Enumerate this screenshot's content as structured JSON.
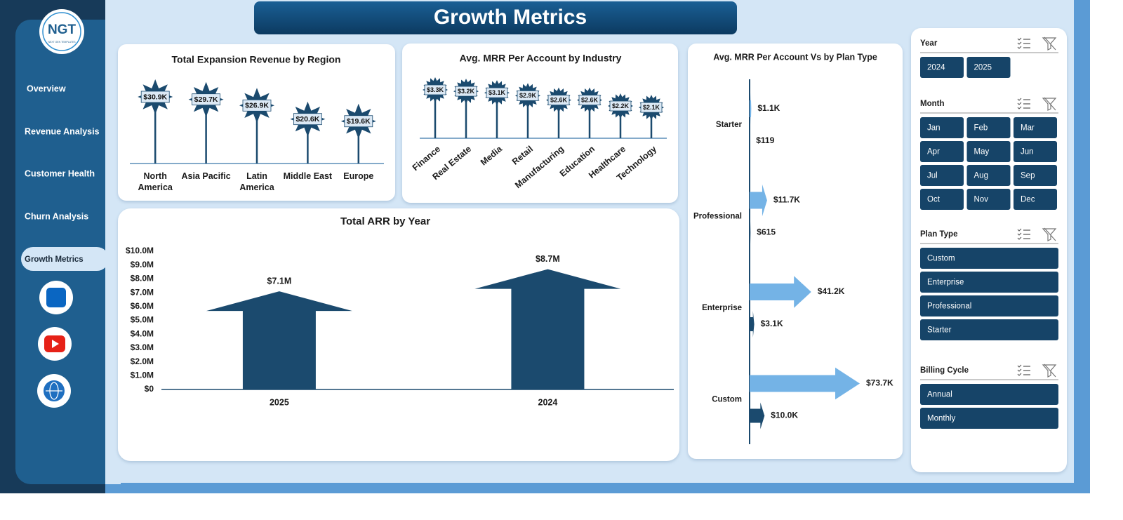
{
  "header": {
    "title": "Growth Metrics"
  },
  "logo": {
    "text": "NGT",
    "subtitle": "NEXT GEN TEMPLATES"
  },
  "nav": [
    "Overview",
    "Revenue Analysis",
    "Customer Health",
    "Churn Analysis",
    "Growth Metrics"
  ],
  "chart_data": [
    {
      "type": "lollipop",
      "title": "Total Expansion Revenue by Region",
      "categories": [
        "North America",
        "Asia Pacific",
        "Latin America",
        "Middle East",
        "Europe"
      ],
      "values": [
        30900,
        29700,
        26900,
        20600,
        19600
      ],
      "value_labels": [
        "$30.9K",
        "$29.7K",
        "$26.9K",
        "$20.6K",
        "$19.6K"
      ],
      "color": "#1b4a6e"
    },
    {
      "type": "lollipop",
      "title": "Avg. MRR Per Account by Industry",
      "categories": [
        "Finance",
        "Real Estate",
        "Media",
        "Retail",
        "Manufacturing",
        "Education",
        "Healthcare",
        "Technology"
      ],
      "values": [
        3300,
        3200,
        3100,
        2900,
        2600,
        2600,
        2200,
        2100
      ],
      "value_labels": [
        "$3.3K",
        "$3.2K",
        "$3.1K",
        "$2.9K",
        "$2.6K",
        "$2.6K",
        "$2.2K",
        "$2.1K"
      ],
      "color": "#1b4a6e"
    },
    {
      "type": "column",
      "title": "Total ARR by Year",
      "categories": [
        "2025",
        "2024"
      ],
      "values": [
        7100000,
        8700000
      ],
      "value_labels": [
        "$7.1M",
        "$8.7M"
      ],
      "color": "#1b4a6e",
      "ylim": [
        0,
        10000000
      ],
      "yticks": [
        {
          "value": 0,
          "label": "$0"
        },
        {
          "value": 1000000,
          "label": "$1.0M"
        },
        {
          "value": 2000000,
          "label": "$2.0M"
        },
        {
          "value": 3000000,
          "label": "$3.0M"
        },
        {
          "value": 4000000,
          "label": "$4.0M"
        },
        {
          "value": 5000000,
          "label": "$5.0M"
        },
        {
          "value": 6000000,
          "label": "$6.0M"
        },
        {
          "value": 7000000,
          "label": "$7.0M"
        },
        {
          "value": 8000000,
          "label": "$8.0M"
        },
        {
          "value": 9000000,
          "label": "$9.0M"
        },
        {
          "value": 10000000,
          "label": "$10.0M"
        }
      ],
      "grid": false
    },
    {
      "type": "bar",
      "title": "Avg. MRR Per Account Vs  by Plan Type",
      "categories": [
        "Starter",
        "Professional",
        "Enterprise",
        "Custom"
      ],
      "series": [
        {
          "color": "#74b3e6",
          "values": [
            1100,
            11700,
            41200,
            73700
          ],
          "value_labels": [
            "$1.1K",
            "$11.7K",
            "$41.2K",
            "$73.7K"
          ]
        },
        {
          "color": "#1b4a6e",
          "values": [
            119,
            615,
            3100,
            10000
          ],
          "value_labels": [
            "$119",
            "$615",
            "$3.1K",
            "$10.0K"
          ]
        }
      ]
    }
  ],
  "slicers": [
    {
      "title": "Year",
      "items": [
        "2024",
        "2025"
      ]
    },
    {
      "title": "Month",
      "items": [
        "Jan",
        "Feb",
        "Mar",
        "Apr",
        "May",
        "Jun",
        "Jul",
        "Aug",
        "Sep",
        "Oct",
        "Nov",
        "Dec"
      ]
    },
    {
      "title": "Plan Type",
      "items": [
        "Custom",
        "Enterprise",
        "Professional",
        "Starter"
      ]
    },
    {
      "title": "Billing Cycle",
      "items": [
        "Annual",
        "Monthly"
      ]
    }
  ]
}
